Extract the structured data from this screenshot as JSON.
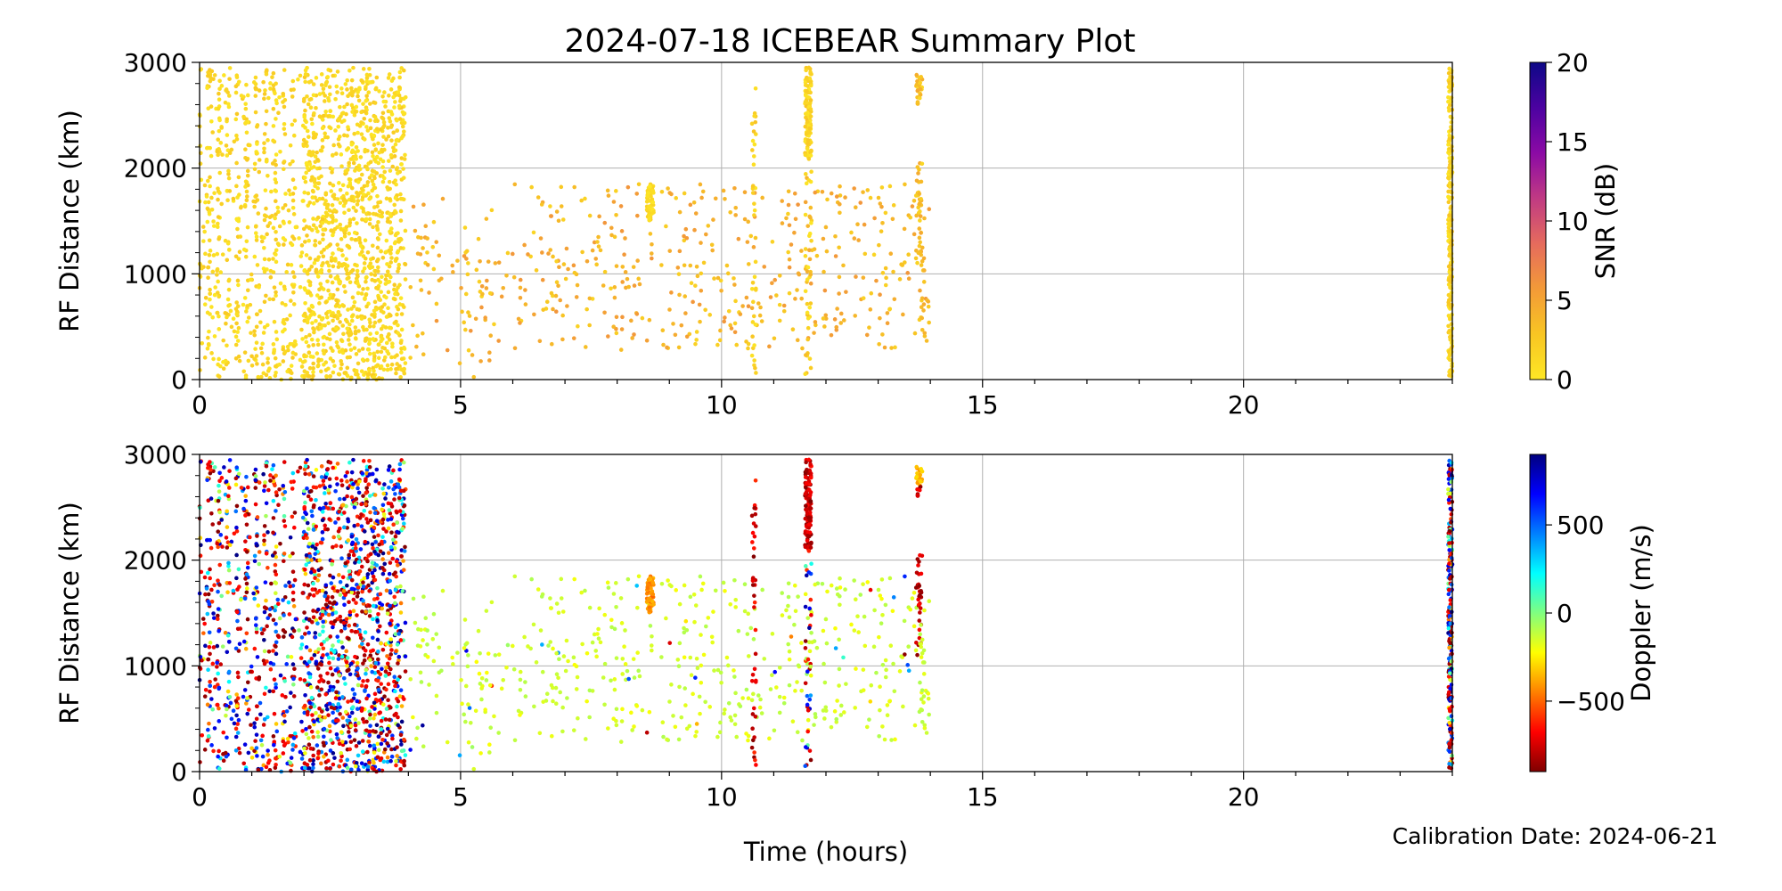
{
  "title": "2024-07-18 ICEBEAR Summary Plot",
  "footer": "Calibration Date: 2024-06-21",
  "chart_data": {
    "type": "scatter",
    "xlabel": "Time (hours)",
    "xlim": [
      0,
      24
    ],
    "x_ticks": [
      0,
      5,
      10,
      15,
      20
    ],
    "ylim": [
      0,
      3000
    ],
    "y_ticks": [
      0,
      1000,
      2000,
      3000
    ],
    "grid": true,
    "panels": [
      {
        "ylabel": "RF Distance (km)",
        "colorbar": {
          "label": "SNR (dB)",
          "range": [
            0,
            20
          ],
          "ticks": [
            0,
            5,
            10,
            15,
            20
          ],
          "tick_labels": [
            "0",
            "5",
            "10",
            "15",
            "20"
          ],
          "colors": [
            "#fde725",
            "#f8c523",
            "#f39a38",
            "#e56b5d",
            "#c03a83",
            "#8b0aa5",
            "#4c02a1",
            "#0d0887"
          ]
        }
      },
      {
        "ylabel": "RF Distance (km)",
        "colorbar": {
          "label": "Doppler (m/s)",
          "range": [
            -900,
            900
          ],
          "ticks": [
            -500,
            0,
            500
          ],
          "tick_labels": [
            "−500",
            "0",
            "500"
          ],
          "colors": [
            "#7f0000",
            "#ff0000",
            "#ff8000",
            "#ffff00",
            "#80ff80",
            "#00ffff",
            "#0080ff",
            "#0000ff",
            "#00007f"
          ]
        }
      }
    ],
    "clusters": [
      {
        "x": [
          0.0,
          3.95
        ],
        "y": [
          0,
          2950
        ],
        "density": "very high",
        "snr": "0-3 dB",
        "doppler": "mixed ±900 m/s"
      },
      {
        "x": [
          4.0,
          14.0
        ],
        "y": [
          300,
          1850
        ],
        "density": "sparse",
        "snr": "2-6 dB",
        "doppler": "≈ -150 m/s"
      },
      {
        "x": [
          8.55,
          8.7
        ],
        "y": [
          1500,
          1850
        ],
        "density": "dense streak",
        "snr": "0-2 dB",
        "doppler": "≈ -400 m/s"
      },
      {
        "x": [
          10.6,
          10.65
        ],
        "y": [
          0,
          2900
        ],
        "density": "sparse column",
        "snr": "0-3 dB",
        "doppler": "≈ -800 m/s"
      },
      {
        "x": [
          11.6,
          11.72
        ],
        "y": [
          2100,
          2950
        ],
        "density": "dense column",
        "snr": "0-3 dB",
        "doppler": "≈ -800 m/s"
      },
      {
        "x": [
          13.72,
          13.85
        ],
        "y": [
          1100,
          2950
        ],
        "density": "column",
        "snr": "1-5 dB",
        "doppler": "≈ -800 m/s"
      },
      {
        "x": [
          23.92,
          24.0
        ],
        "y": [
          0,
          2950
        ],
        "density": "dense column",
        "snr": "0-3 dB",
        "doppler": "mixed ±900 m/s"
      }
    ]
  }
}
